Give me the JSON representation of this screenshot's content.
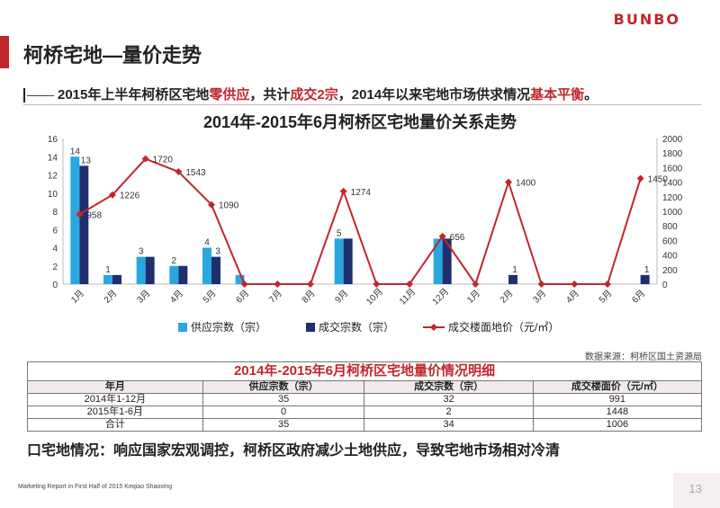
{
  "header": {
    "logo": "BUNBO",
    "title": "柯桥宅地—量价走势",
    "subtitle_parts": [
      {
        "text": "2015年上半年柯桥区宅地",
        "hl": false
      },
      {
        "text": "零供应",
        "hl": true
      },
      {
        "text": "，共计",
        "hl": false
      },
      {
        "text": "成交2宗",
        "hl": true
      },
      {
        "text": "，2014年以来宅地市场供求情况",
        "hl": false
      },
      {
        "text": "基本平衡",
        "hl": true
      },
      {
        "text": "。",
        "hl": false
      }
    ]
  },
  "colors": {
    "accent": "#c0272d",
    "supply": "#29a8e0",
    "deals": "#1f2f6e",
    "price_line": "#c0272d"
  },
  "chart_data": {
    "type": "bar",
    "title": "2014年-2015年6月柯桥区宅地量价关系走势",
    "categories": [
      "1月",
      "2月",
      "3月",
      "4月",
      "5月",
      "6月",
      "7月",
      "8月",
      "9月",
      "10月",
      "11月",
      "12月",
      "1月",
      "2月",
      "3月",
      "4月",
      "5月",
      "6月"
    ],
    "series": [
      {
        "name": "供应宗数（宗）",
        "type": "bar",
        "axis": "left",
        "values": [
          14,
          1,
          3,
          2,
          4,
          1,
          0,
          0,
          5,
          0,
          0,
          5,
          0,
          0,
          0,
          0,
          0,
          0
        ],
        "labels": [
          "14",
          "1",
          "3",
          "2",
          "4",
          "",
          "",
          "",
          "5",
          "",
          "",
          "",
          "",
          "",
          "",
          "",
          "",
          ""
        ]
      },
      {
        "name": "成交宗数（宗）",
        "type": "bar",
        "axis": "left",
        "values": [
          13,
          1,
          3,
          2,
          3,
          0,
          0,
          0,
          5,
          0,
          0,
          5,
          0,
          1,
          0,
          0,
          0,
          1
        ],
        "labels": [
          "13",
          "",
          "",
          "",
          "3",
          "",
          "",
          "",
          "",
          "",
          "",
          "",
          "",
          "1",
          "",
          "",
          "",
          "1"
        ]
      },
      {
        "name": "成交楼面地价（元/㎡）",
        "type": "line",
        "axis": "right",
        "values": [
          958,
          1226,
          1720,
          1543,
          1090,
          0,
          0,
          0,
          1274,
          0,
          0,
          656,
          0,
          1400,
          0,
          0,
          0,
          1450
        ],
        "labels": [
          "958",
          "1226",
          "1720",
          "1543",
          "1090",
          "",
          "",
          "",
          "1274",
          "",
          "",
          "656",
          "",
          "1400",
          "",
          "",
          "",
          "1450"
        ]
      }
    ],
    "y_left": {
      "min": 0,
      "max": 16,
      "ticks": [
        "0",
        "2",
        "4",
        "6",
        "8",
        "10",
        "12",
        "14",
        "16"
      ]
    },
    "y_right": {
      "min": 0,
      "max": 2000,
      "ticks": [
        "0",
        "200",
        "400",
        "600",
        "800",
        "1000",
        "1200",
        "1400",
        "1600",
        "1800",
        "2000"
      ]
    },
    "legend": [
      "供应宗数（宗）",
      "成交宗数（宗）",
      "成交楼面地价（元/㎡）"
    ],
    "legend_position": "bottom",
    "grid": false
  },
  "source_note": "数据来源：柯桥区国土资源局",
  "table": {
    "title": "2014年-2015年6月柯桥区宅地量价情况明细",
    "headers": [
      "年月",
      "供应宗数（宗）",
      "成交宗数（宗）",
      "成交楼面价（元/㎡）"
    ],
    "rows": [
      [
        "2014年1-12月",
        "35",
        "32",
        "991"
      ],
      [
        "2015年1-6月",
        "0",
        "2",
        "1448"
      ],
      [
        "合计",
        "35",
        "34",
        "1006"
      ]
    ]
  },
  "conclusion": "口宅地情况：响应国家宏观调控，柯桥区政府减少土地供应，导致宅地市场相对冷清",
  "footer": "Marketing Report in First Half of 2015 Keqiao Shaoxing",
  "page_number": "13"
}
